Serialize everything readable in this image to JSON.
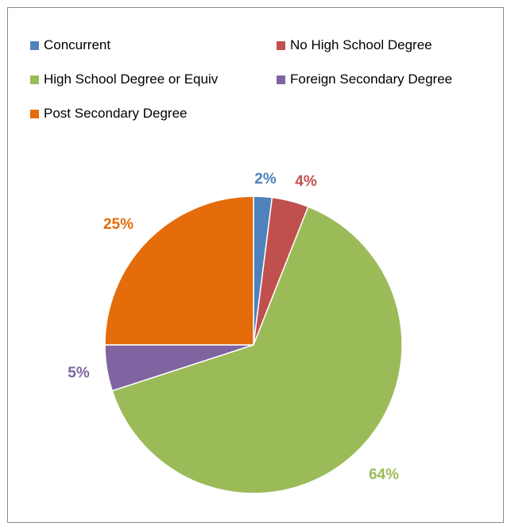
{
  "chart_data": {
    "type": "pie",
    "title": "",
    "legend_position": "top",
    "slices": [
      {
        "label": "Concurrent",
        "value": 2,
        "display": "2%",
        "color": "#4f81bd"
      },
      {
        "label": "No High School Degree",
        "value": 4,
        "display": "4%",
        "color": "#c0504d"
      },
      {
        "label": "High School Degree or Equiv",
        "value": 64,
        "display": "64%",
        "color": "#9bbb59"
      },
      {
        "label": "Foreign Secondary Degree",
        "value": 5,
        "display": "5%",
        "color": "#8064a2"
      },
      {
        "label": "Post Secondary Degree",
        "value": 25,
        "display": "25%",
        "color": "#e46c0a"
      }
    ]
  }
}
